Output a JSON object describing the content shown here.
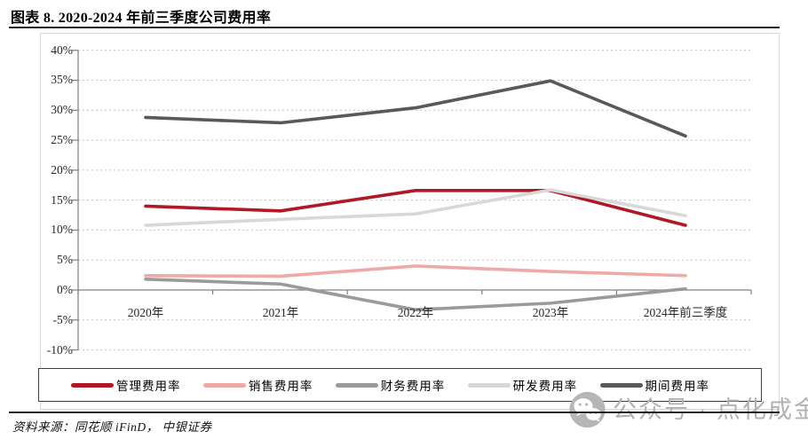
{
  "title": "图表 8. 2020-2024 年前三季度公司费用率",
  "source": "资料来源：同花顺 iFinD， 中银证券",
  "watermark": "公众号 · 点化成金",
  "colors": {
    "management_red": "#B01826",
    "sales_pink": "#EFA9A6",
    "finance_gray": "#9A9A9A",
    "rnd_lightgray": "#D8D8D8",
    "period_darkgray": "#595959",
    "grid": "#c4c4c4",
    "axis": "#808080"
  },
  "chart_data": {
    "type": "line",
    "title": "2020-2024 年前三季度公司费用率",
    "categories": [
      "2020年",
      "2021年",
      "2022年",
      "2023年",
      "2024年前三季度"
    ],
    "series": [
      {
        "name": "管理费用率",
        "color": "#B01826",
        "values": [
          14.0,
          13.2,
          16.6,
          16.6,
          10.8
        ]
      },
      {
        "name": "销售费用率",
        "color": "#EFA9A6",
        "values": [
          2.4,
          2.3,
          4.0,
          3.1,
          2.4
        ]
      },
      {
        "name": "财务费用率",
        "color": "#9A9A9A",
        "values": [
          1.8,
          1.0,
          -3.3,
          -2.2,
          0.2
        ]
      },
      {
        "name": "研发费用率",
        "color": "#D8D8D8",
        "values": [
          10.8,
          11.8,
          12.7,
          16.7,
          12.4
        ]
      },
      {
        "name": "期间费用率",
        "color": "#595959",
        "values": [
          28.8,
          27.9,
          30.4,
          34.9,
          25.7
        ]
      }
    ],
    "ylim": [
      -10,
      40
    ],
    "y_tick_step": 5,
    "y_tick_labels": [
      "40%",
      "35%",
      "30%",
      "25%",
      "20%",
      "15%",
      "10%",
      "5%",
      "0%",
      "-5%",
      "-10%"
    ],
    "grid": "horizontal dotted",
    "legend_position": "bottom"
  }
}
